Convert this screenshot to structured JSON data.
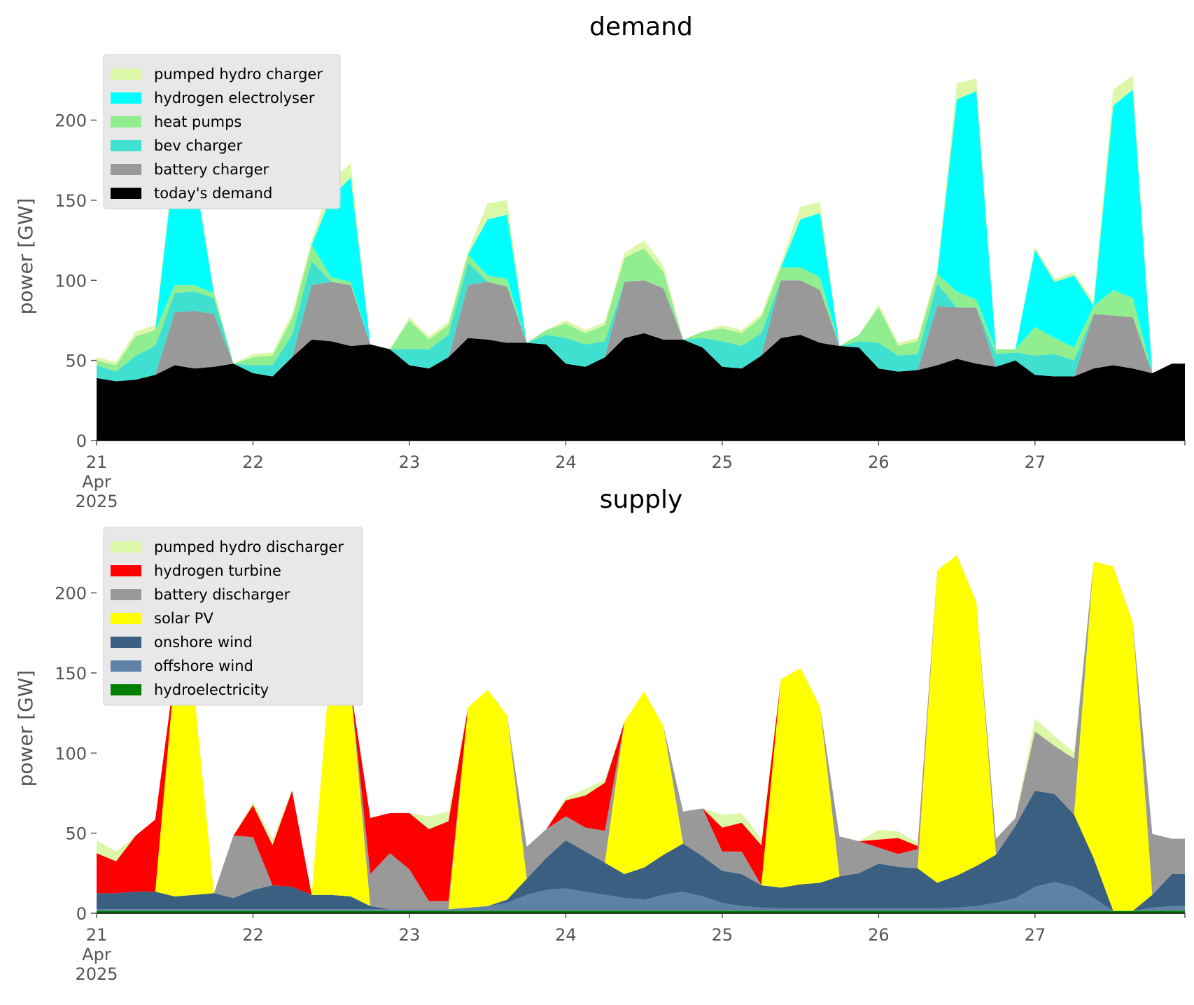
{
  "colors": {
    "pumped_hydro": "#dcf7a7",
    "hydrogen_electrolyser": "#00ffff",
    "heat_pumps": "#90ee90",
    "bev_charger": "#40e0d0",
    "battery": "#999999",
    "todays_demand": "#000000",
    "hydrogen_turbine": "#ff0000",
    "solar": "#ffff00",
    "onshore_wind": "#3b5f80",
    "offshore_wind": "#5d82a5",
    "hydro": "#008000",
    "legend_bg": "#e8e8e8"
  },
  "chart_data": [
    {
      "type": "area",
      "stacked": true,
      "title": "demand",
      "ylabel": "power [GW]",
      "ylim": [
        0,
        240
      ],
      "yticks": [
        0,
        50,
        100,
        150,
        200
      ],
      "xlim": [
        "2025-04-21T00:00",
        "2025-04-27T23:00"
      ],
      "xtick_labels": [
        {
          "date": "2025-04-21",
          "lines": [
            "21",
            "Apr",
            "2025"
          ]
        },
        {
          "date": "2025-04-22",
          "lines": [
            "22"
          ]
        },
        {
          "date": "2025-04-23",
          "lines": [
            "23"
          ]
        },
        {
          "date": "2025-04-24",
          "lines": [
            "24"
          ]
        },
        {
          "date": "2025-04-25",
          "lines": [
            "25"
          ]
        },
        {
          "date": "2025-04-26",
          "lines": [
            "26"
          ]
        },
        {
          "date": "2025-04-27",
          "lines": [
            "27"
          ]
        }
      ],
      "grid": false,
      "legend": {
        "placement": "upper-left",
        "order": [
          "pumped hydro charger",
          "hydrogen electrolyser",
          "heat pumps",
          "bev charger",
          "battery charger",
          "today's demand"
        ]
      },
      "x": [
        "2025-04-21T00:00",
        "2025-04-21T03:00",
        "2025-04-21T06:00",
        "2025-04-21T09:00",
        "2025-04-21T12:00",
        "2025-04-21T15:00",
        "2025-04-21T18:00",
        "2025-04-21T21:00",
        "2025-04-22T00:00",
        "2025-04-22T03:00",
        "2025-04-22T06:00",
        "2025-04-22T09:00",
        "2025-04-22T12:00",
        "2025-04-22T15:00",
        "2025-04-22T18:00",
        "2025-04-22T21:00",
        "2025-04-23T00:00",
        "2025-04-23T03:00",
        "2025-04-23T06:00",
        "2025-04-23T09:00",
        "2025-04-23T12:00",
        "2025-04-23T15:00",
        "2025-04-23T18:00",
        "2025-04-23T21:00",
        "2025-04-24T00:00",
        "2025-04-24T03:00",
        "2025-04-24T06:00",
        "2025-04-24T09:00",
        "2025-04-24T12:00",
        "2025-04-24T15:00",
        "2025-04-24T18:00",
        "2025-04-24T21:00",
        "2025-04-25T00:00",
        "2025-04-25T03:00",
        "2025-04-25T06:00",
        "2025-04-25T09:00",
        "2025-04-25T12:00",
        "2025-04-25T15:00",
        "2025-04-25T18:00",
        "2025-04-25T21:00",
        "2025-04-26T00:00",
        "2025-04-26T03:00",
        "2025-04-26T06:00",
        "2025-04-26T09:00",
        "2025-04-26T12:00",
        "2025-04-26T15:00",
        "2025-04-26T18:00",
        "2025-04-26T21:00",
        "2025-04-27T00:00",
        "2025-04-27T03:00",
        "2025-04-27T06:00",
        "2025-04-27T09:00",
        "2025-04-27T12:00",
        "2025-04-27T15:00",
        "2025-04-27T18:00",
        "2025-04-27T21:00"
      ],
      "series": [
        {
          "name": "today's demand",
          "color_key": "todays_demand",
          "values": [
            39,
            37,
            38,
            41,
            47,
            45,
            46,
            48,
            42,
            40,
            52,
            63,
            62,
            59,
            60,
            57,
            47,
            45,
            52,
            64,
            63,
            61,
            61,
            60,
            48,
            46,
            52,
            64,
            67,
            63,
            63,
            58,
            46,
            45,
            53,
            64,
            66,
            61,
            59,
            58,
            45,
            43,
            44,
            47,
            51,
            48,
            46,
            50,
            41,
            40,
            40,
            45,
            47,
            45,
            42,
            48
          ]
        },
        {
          "name": "battery charger",
          "color_key": "battery",
          "values": [
            0,
            0,
            0,
            0,
            33,
            36,
            33,
            0,
            0,
            0,
            0,
            34,
            37,
            38,
            0,
            0,
            0,
            0,
            0,
            33,
            36,
            35,
            0,
            0,
            0,
            0,
            0,
            35,
            33,
            32,
            0,
            0,
            0,
            0,
            0,
            36,
            34,
            33,
            0,
            0,
            0,
            0,
            0,
            37,
            32,
            35,
            0,
            0,
            0,
            0,
            0,
            34,
            31,
            32,
            0,
            0
          ]
        },
        {
          "name": "bev charger",
          "color_key": "bev_charger",
          "values": [
            8,
            6,
            15,
            18,
            12,
            12,
            10,
            0,
            5,
            7,
            14,
            15,
            0,
            0,
            0,
            0,
            10,
            12,
            14,
            14,
            0,
            0,
            0,
            6,
            16,
            14,
            10,
            0,
            0,
            0,
            0,
            6,
            16,
            14,
            14,
            0,
            0,
            0,
            0,
            4,
            16,
            10,
            10,
            14,
            0,
            0,
            8,
            5,
            12,
            14,
            10,
            0,
            0,
            0,
            0,
            0
          ]
        },
        {
          "name": "heat pumps",
          "color_key": "heat_pumps",
          "values": [
            3,
            4,
            12,
            10,
            5,
            4,
            3,
            0,
            5,
            6,
            10,
            10,
            3,
            2,
            0,
            0,
            18,
            6,
            6,
            5,
            4,
            5,
            0,
            3,
            9,
            7,
            10,
            15,
            20,
            10,
            0,
            4,
            8,
            8,
            10,
            8,
            8,
            8,
            0,
            4,
            22,
            6,
            8,
            6,
            10,
            5,
            3,
            2,
            18,
            10,
            8,
            5,
            16,
            12,
            0,
            0
          ]
        },
        {
          "name": "hydrogen electrolyser",
          "color_key": "hydrogen_electrolyser",
          "values": [
            0,
            0,
            0,
            0,
            78,
            70,
            0,
            0,
            0,
            0,
            0,
            0,
            50,
            65,
            0,
            0,
            0,
            0,
            0,
            0,
            35,
            40,
            0,
            0,
            0,
            0,
            0,
            0,
            0,
            0,
            0,
            0,
            0,
            0,
            0,
            0,
            30,
            40,
            0,
            0,
            0,
            0,
            0,
            0,
            120,
            130,
            0,
            0,
            48,
            35,
            45,
            0,
            115,
            130,
            0,
            0
          ]
        },
        {
          "name": "pumped hydro charger",
          "color_key": "pumped_hydro",
          "values": [
            2,
            2,
            3,
            3,
            4,
            4,
            2,
            0,
            2,
            2,
            3,
            3,
            10,
            9,
            0,
            0,
            2,
            2,
            2,
            2,
            10,
            9,
            0,
            0,
            2,
            2,
            2,
            3,
            5,
            4,
            0,
            0,
            2,
            2,
            2,
            3,
            8,
            7,
            0,
            0,
            2,
            2,
            2,
            3,
            10,
            8,
            0,
            0,
            2,
            2,
            2,
            3,
            10,
            9,
            0,
            0
          ]
        }
      ]
    },
    {
      "type": "area",
      "stacked": true,
      "title": "supply",
      "ylabel": "power [GW]",
      "ylim": [
        0,
        240
      ],
      "yticks": [
        0,
        50,
        100,
        150,
        200
      ],
      "xlim": [
        "2025-04-21T00:00",
        "2025-04-27T23:00"
      ],
      "xtick_labels": [
        {
          "date": "2025-04-21",
          "lines": [
            "21",
            "Apr",
            "2025"
          ]
        },
        {
          "date": "2025-04-22",
          "lines": [
            "22"
          ]
        },
        {
          "date": "2025-04-23",
          "lines": [
            "23"
          ]
        },
        {
          "date": "2025-04-24",
          "lines": [
            "24"
          ]
        },
        {
          "date": "2025-04-25",
          "lines": [
            "25"
          ]
        },
        {
          "date": "2025-04-26",
          "lines": [
            "26"
          ]
        },
        {
          "date": "2025-04-27",
          "lines": [
            "27"
          ]
        }
      ],
      "grid": false,
      "legend": {
        "placement": "upper-left",
        "order": [
          "pumped hydro discharger",
          "hydrogen turbine",
          "battery discharger",
          "solar PV",
          "onshore wind",
          "offshore wind",
          "hydroelectricity"
        ]
      },
      "x": [
        "2025-04-21T00:00",
        "2025-04-21T03:00",
        "2025-04-21T06:00",
        "2025-04-21T09:00",
        "2025-04-21T12:00",
        "2025-04-21T15:00",
        "2025-04-21T18:00",
        "2025-04-21T21:00",
        "2025-04-22T00:00",
        "2025-04-22T03:00",
        "2025-04-22T06:00",
        "2025-04-22T09:00",
        "2025-04-22T12:00",
        "2025-04-22T15:00",
        "2025-04-22T18:00",
        "2025-04-22T21:00",
        "2025-04-23T00:00",
        "2025-04-23T03:00",
        "2025-04-23T06:00",
        "2025-04-23T09:00",
        "2025-04-23T12:00",
        "2025-04-23T15:00",
        "2025-04-23T18:00",
        "2025-04-23T21:00",
        "2025-04-24T00:00",
        "2025-04-24T03:00",
        "2025-04-24T06:00",
        "2025-04-24T09:00",
        "2025-04-24T12:00",
        "2025-04-24T15:00",
        "2025-04-24T18:00",
        "2025-04-24T21:00",
        "2025-04-25T00:00",
        "2025-04-25T03:00",
        "2025-04-25T06:00",
        "2025-04-25T09:00",
        "2025-04-25T12:00",
        "2025-04-25T15:00",
        "2025-04-25T18:00",
        "2025-04-25T21:00",
        "2025-04-26T00:00",
        "2025-04-26T03:00",
        "2025-04-26T06:00",
        "2025-04-26T09:00",
        "2025-04-26T12:00",
        "2025-04-26T15:00",
        "2025-04-26T18:00",
        "2025-04-26T21:00",
        "2025-04-27T00:00",
        "2025-04-27T03:00",
        "2025-04-27T06:00",
        "2025-04-27T09:00",
        "2025-04-27T12:00",
        "2025-04-27T15:00",
        "2025-04-27T18:00",
        "2025-04-27T21:00"
      ],
      "series": [
        {
          "name": "hydroelectricity",
          "color_key": "hydro",
          "values": [
            1.5,
            1.5,
            1.5,
            1.5,
            1.5,
            1.5,
            1.5,
            1.5,
            1.5,
            1.5,
            1.5,
            1.5,
            1.5,
            1.5,
            1.5,
            1.5,
            1.5,
            1.5,
            1.5,
            1.5,
            1.5,
            1.5,
            1.5,
            1.5,
            1.5,
            1.5,
            1.5,
            1.5,
            1.5,
            1.5,
            1.5,
            1.5,
            1.5,
            1.5,
            1.5,
            1.5,
            1.5,
            1.5,
            1.5,
            1.5,
            1.5,
            1.5,
            1.5,
            1.5,
            1.5,
            1.5,
            1.5,
            1.5,
            1.5,
            1.5,
            1.5,
            1.5,
            1.5,
            1.5,
            1.5,
            1.5
          ]
        },
        {
          "name": "offshore wind",
          "color_key": "offshore_wind",
          "values": [
            1,
            1,
            1,
            1,
            1,
            1,
            1,
            1,
            1,
            1,
            1,
            1,
            1,
            1,
            1,
            1,
            1,
            1,
            1,
            2,
            3,
            5,
            10,
            13,
            14,
            12,
            10,
            8,
            7,
            10,
            12,
            9,
            5,
            3,
            2,
            1.5,
            1.5,
            1.5,
            1.5,
            1.5,
            1.5,
            1.5,
            1.5,
            1.5,
            2,
            3,
            5,
            8,
            15,
            18,
            15,
            8,
            0,
            0,
            2,
            3
          ]
        },
        {
          "name": "onshore wind",
          "color_key": "onshore_wind",
          "values": [
            10,
            10,
            11,
            11,
            8,
            9,
            10,
            7,
            12,
            15,
            14,
            9,
            9,
            8,
            2,
            0,
            0,
            0,
            0,
            0,
            0,
            2,
            10,
            20,
            30,
            25,
            20,
            15,
            20,
            25,
            30,
            25,
            20,
            20,
            14,
            13,
            15,
            16,
            20,
            22,
            28,
            26,
            25,
            16,
            20,
            25,
            30,
            45,
            60,
            55,
            45,
            25,
            0,
            0,
            8,
            20
          ]
        },
        {
          "name": "solar PV",
          "color_key": "solar",
          "values": [
            0,
            0,
            0,
            0,
            140,
            125,
            0,
            0,
            0,
            0,
            0,
            0,
            150,
            130,
            0,
            0,
            0,
            0,
            0,
            125,
            135,
            115,
            0,
            0,
            0,
            0,
            0,
            95,
            110,
            80,
            0,
            0,
            0,
            0,
            0,
            130,
            135,
            110,
            0,
            0,
            0,
            0,
            0,
            195,
            200,
            165,
            0,
            0,
            0,
            0,
            0,
            185,
            215,
            180,
            0,
            0
          ]
        },
        {
          "name": "battery discharger",
          "color_key": "battery",
          "values": [
            0,
            0,
            0,
            0,
            0,
            0,
            0,
            39,
            33,
            0,
            0,
            0,
            0,
            0,
            20,
            35,
            25,
            5,
            5,
            0,
            0,
            0,
            20,
            18,
            15,
            15,
            20,
            0,
            0,
            0,
            20,
            30,
            12,
            14,
            0,
            0,
            0,
            0,
            25,
            20,
            10,
            8,
            12,
            0,
            0,
            0,
            10,
            5,
            37,
            30,
            35,
            0,
            0,
            0,
            38,
            22
          ]
        },
        {
          "name": "hydrogen turbine",
          "color_key": "hydrogen_turbine",
          "values": [
            25,
            20,
            35,
            45,
            0,
            0,
            0,
            0,
            20,
            25,
            60,
            0,
            0,
            0,
            35,
            25,
            35,
            45,
            50,
            0,
            0,
            0,
            0,
            0,
            10,
            20,
            30,
            0,
            0,
            0,
            0,
            0,
            15,
            18,
            25,
            0,
            0,
            0,
            0,
            0,
            5,
            10,
            2,
            0,
            0,
            0,
            0,
            0,
            0,
            0,
            0,
            0,
            0,
            0,
            0,
            0
          ]
        },
        {
          "name": "pumped hydro discharger",
          "color_key": "pumped_hydro",
          "values": [
            8,
            6,
            0,
            0,
            0,
            0,
            0,
            0,
            2,
            4,
            0,
            0,
            0,
            0,
            0,
            0,
            0,
            8,
            6,
            0,
            0,
            0,
            0,
            0,
            2,
            4,
            2,
            0,
            0,
            0,
            0,
            0,
            8,
            6,
            4,
            0,
            0,
            0,
            0,
            0,
            6,
            4,
            2,
            0,
            0,
            0,
            0,
            0,
            8,
            6,
            4,
            0,
            0,
            0,
            0,
            0
          ]
        }
      ]
    }
  ]
}
